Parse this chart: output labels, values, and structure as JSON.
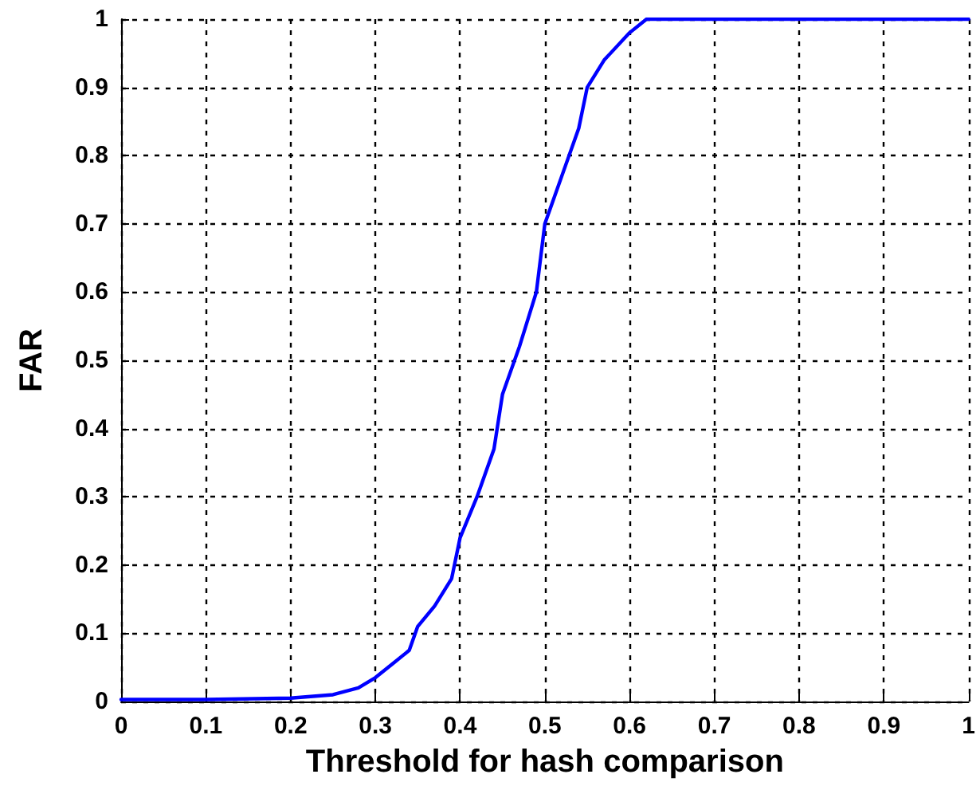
{
  "chart_data": {
    "type": "line",
    "xlabel": "Threshold for hash comparison",
    "ylabel": "FAR",
    "series": [
      {
        "color": "#0000ff",
        "x": [
          0,
          0.1,
          0.2,
          0.25,
          0.28,
          0.3,
          0.32,
          0.34,
          0.35,
          0.37,
          0.39,
          0.4,
          0.42,
          0.44,
          0.45,
          0.47,
          0.49,
          0.5,
          0.52,
          0.54,
          0.55,
          0.57,
          0.6,
          0.62,
          0.7,
          0.8,
          0.9,
          1
        ],
        "values": [
          0.003,
          0.003,
          0.005,
          0.01,
          0.02,
          0.035,
          0.055,
          0.075,
          0.11,
          0.14,
          0.18,
          0.24,
          0.3,
          0.37,
          0.45,
          0.52,
          0.6,
          0.7,
          0.77,
          0.84,
          0.9,
          0.94,
          0.98,
          1,
          1,
          1,
          1,
          1
        ]
      }
    ],
    "xlim": [
      0,
      1
    ],
    "xticks": [
      0,
      0.1,
      0.2,
      0.3,
      0.4,
      0.5,
      0.6,
      0.7,
      0.8,
      0.9,
      1
    ],
    "ylim": [
      0,
      1
    ],
    "yticks": [
      0,
      0.1,
      0.2,
      0.3,
      0.4,
      0.5,
      0.6,
      0.7,
      0.8,
      0.9,
      1
    ],
    "grid": true,
    "marker": "none",
    "line_style": "solid"
  }
}
